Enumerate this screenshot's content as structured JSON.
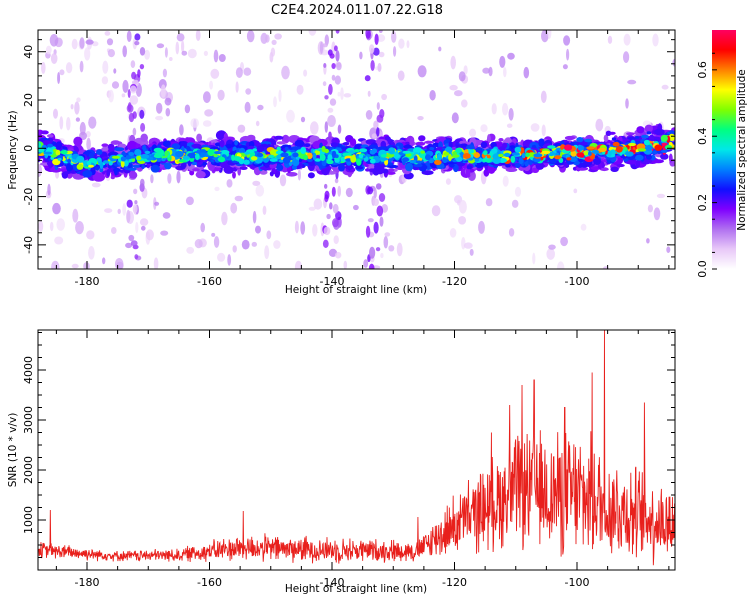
{
  "title": "C2E4.2024.011.07.22.G18",
  "chart_data": [
    {
      "type": "heatmap",
      "name": "spectrogram",
      "xlabel": "Height of straight line (km)",
      "ylabel": "Frequency (Hz)",
      "xlim": [
        -188,
        -84
      ],
      "ylim": [
        -50,
        49
      ],
      "x_ticks": [
        -180,
        -160,
        -140,
        -120,
        -100
      ],
      "y_ticks": [
        -40,
        -20,
        0,
        20,
        40
      ],
      "band_center_hz": [
        {
          "x": -188,
          "y": 0
        },
        {
          "x": -180,
          "y": -7
        },
        {
          "x": -170,
          "y": -3
        },
        {
          "x": -160,
          "y": -3
        },
        {
          "x": -140,
          "y": -3
        },
        {
          "x": -120,
          "y": -3
        },
        {
          "x": -110,
          "y": -3
        },
        {
          "x": -100,
          "y": -2
        },
        {
          "x": -95,
          "y": -1
        },
        {
          "x": -84,
          "y": 2
        }
      ],
      "band_halfwidth_hz": 7,
      "colorbar": {
        "label": "Normalized spectral amplitude",
        "range": [
          0,
          0.72
        ],
        "ticks": [
          0.0,
          0.2,
          0.4,
          0.6
        ],
        "tick_labels": [
          "0.0",
          "0.2",
          "0.4",
          "0.6"
        ],
        "colors": [
          "#ffffff",
          "#e8c8f8",
          "#b070f0",
          "#7f00ff",
          "#1010ff",
          "#0080ff",
          "#00e8e8",
          "#00ff80",
          "#80ff00",
          "#ffff00",
          "#ff8000",
          "#ff0000",
          "#ff0060"
        ]
      }
    },
    {
      "type": "line",
      "name": "snr",
      "xlabel": "Height of straight line (km)",
      "ylabel": "SNR (10 * v/v)",
      "xlim": [
        -188,
        -84
      ],
      "ylim": [
        0,
        4800
      ],
      "x_ticks": [
        -180,
        -160,
        -140,
        -120,
        -100
      ],
      "y_ticks": [
        1000,
        2000,
        3000,
        4000
      ],
      "color": "#e8201c",
      "envelope": [
        {
          "x": -188,
          "mean": 400,
          "amp": 200
        },
        {
          "x": -175,
          "mean": 280,
          "amp": 120
        },
        {
          "x": -165,
          "mean": 300,
          "amp": 160
        },
        {
          "x": -155,
          "mean": 450,
          "amp": 320
        },
        {
          "x": -140,
          "mean": 400,
          "amp": 300
        },
        {
          "x": -126,
          "mean": 380,
          "amp": 250
        },
        {
          "x": -120,
          "mean": 900,
          "amp": 700
        },
        {
          "x": -110,
          "mean": 1600,
          "amp": 1300
        },
        {
          "x": -100,
          "mean": 1500,
          "amp": 1500
        },
        {
          "x": -90,
          "mean": 1100,
          "amp": 1100
        },
        {
          "x": -84,
          "mean": 900,
          "amp": 900
        }
      ],
      "peaks": [
        {
          "x": -95.5,
          "y": 4800
        },
        {
          "x": -97.5,
          "y": 3950
        },
        {
          "x": -107,
          "y": 3800
        },
        {
          "x": -109,
          "y": 3700
        },
        {
          "x": -89,
          "y": 3350
        },
        {
          "x": -111,
          "y": 3300
        },
        {
          "x": -102,
          "y": 3250
        },
        {
          "x": -114,
          "y": 2750
        },
        {
          "x": -186,
          "y": 1200
        },
        {
          "x": -154.5,
          "y": 1180
        },
        {
          "x": -126,
          "y": 1060
        }
      ]
    }
  ]
}
